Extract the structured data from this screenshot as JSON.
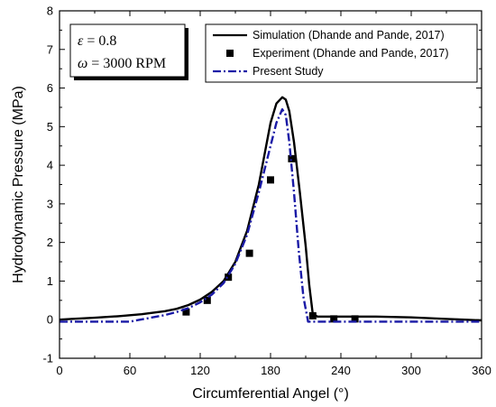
{
  "chart_data": {
    "type": "line",
    "xlabel": "Circumferential Angel (°)",
    "ylabel": "Hydrodynamic Pressure (MPa)",
    "xlim": [
      0,
      360
    ],
    "ylim": [
      -1,
      8
    ],
    "xticks": [
      0,
      60,
      120,
      180,
      240,
      300,
      360
    ],
    "yticks": [
      -1,
      0,
      1,
      2,
      3,
      4,
      5,
      6,
      7,
      8
    ],
    "grid": false,
    "legend_position": "top-right",
    "parameters": [
      {
        "symbol": "ε",
        "equals": " = ",
        "value": "0.8"
      },
      {
        "symbol": "ω",
        "equals": " = ",
        "value": "3000 RPM"
      }
    ],
    "series": [
      {
        "name": "Simulation (Dhande and Pande, 2017)",
        "style": "solid-line",
        "color": "#000000",
        "x": [
          0,
          10,
          30,
          50,
          70,
          90,
          100,
          110,
          120,
          130,
          140,
          150,
          160,
          170,
          175,
          180,
          185,
          190,
          193,
          196,
          200,
          205,
          210,
          213,
          216,
          220,
          240,
          270,
          300,
          330,
          345,
          360
        ],
        "y": [
          0.0,
          0.02,
          0.05,
          0.09,
          0.14,
          0.22,
          0.28,
          0.38,
          0.52,
          0.72,
          1.0,
          1.5,
          2.3,
          3.5,
          4.3,
          5.1,
          5.6,
          5.76,
          5.7,
          5.4,
          4.6,
          3.3,
          1.9,
          0.9,
          0.15,
          0.08,
          0.08,
          0.08,
          0.06,
          0.02,
          0.0,
          -0.02
        ]
      },
      {
        "name": "Experiment (Dhande and Pande, 2017)",
        "style": "square-marker",
        "color": "#000000",
        "x": [
          108,
          126,
          144,
          162,
          180,
          198,
          216,
          234,
          252
        ],
        "y": [
          0.2,
          0.5,
          1.1,
          1.72,
          3.62,
          4.17,
          0.1,
          0.02,
          0.02
        ]
      },
      {
        "name": "Present Study",
        "style": "dash-dot-line",
        "color": "#1a1aa6",
        "x": [
          0,
          30,
          60,
          90,
          100,
          110,
          120,
          130,
          140,
          150,
          160,
          170,
          180,
          185,
          190,
          193,
          196,
          200,
          204,
          208,
          212,
          220,
          240,
          270,
          300,
          330,
          360
        ],
        "y": [
          -0.05,
          -0.05,
          -0.05,
          0.12,
          0.2,
          0.3,
          0.45,
          0.65,
          0.95,
          1.45,
          2.2,
          3.3,
          4.5,
          5.1,
          5.45,
          5.3,
          4.6,
          3.3,
          1.8,
          0.6,
          -0.05,
          -0.05,
          -0.05,
          -0.05,
          -0.05,
          -0.05,
          -0.05
        ]
      }
    ]
  }
}
